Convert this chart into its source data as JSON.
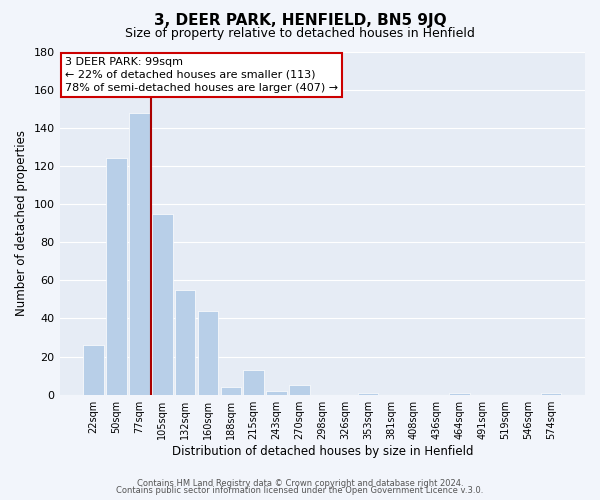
{
  "title": "3, DEER PARK, HENFIELD, BN5 9JQ",
  "subtitle": "Size of property relative to detached houses in Henfield",
  "xlabel": "Distribution of detached houses by size in Henfield",
  "ylabel": "Number of detached properties",
  "footer_line1": "Contains HM Land Registry data © Crown copyright and database right 2024.",
  "footer_line2": "Contains public sector information licensed under the Open Government Licence v.3.0.",
  "bin_labels": [
    "22sqm",
    "50sqm",
    "77sqm",
    "105sqm",
    "132sqm",
    "160sqm",
    "188sqm",
    "215sqm",
    "243sqm",
    "270sqm",
    "298sqm",
    "326sqm",
    "353sqm",
    "381sqm",
    "408sqm",
    "436sqm",
    "464sqm",
    "491sqm",
    "519sqm",
    "546sqm",
    "574sqm"
  ],
  "bar_heights": [
    26,
    124,
    148,
    95,
    55,
    44,
    4,
    13,
    2,
    5,
    0,
    0,
    1,
    0,
    0,
    0,
    1,
    0,
    0,
    0,
    1
  ],
  "bar_color": "#b8cfe8",
  "marker_line_color": "#aa0000",
  "ylim": [
    0,
    180
  ],
  "yticks": [
    0,
    20,
    40,
    60,
    80,
    100,
    120,
    140,
    160,
    180
  ],
  "annotation_line1": "3 DEER PARK: 99sqm",
  "annotation_line2": "← 22% of detached houses are smaller (113)",
  "annotation_line3": "78% of semi-detached houses are larger (407) →",
  "bg_color": "#f2f5fb",
  "plot_bg_color": "#e6ecf5",
  "grid_color": "#ffffff",
  "title_fontsize": 11,
  "subtitle_fontsize": 9
}
